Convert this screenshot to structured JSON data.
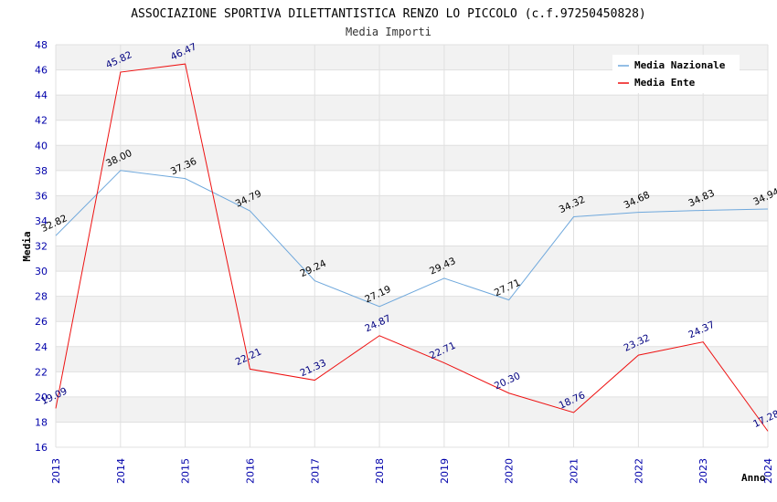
{
  "chart_data": {
    "type": "line",
    "title": "ASSOCIAZIONE SPORTIVA DILETTANTISTICA RENZO LO PICCOLO (c.f.97250450828)",
    "subtitle": "Media Importi",
    "xlabel": "Anno",
    "ylabel": "Media",
    "categories": [
      "2013",
      "2014",
      "2015",
      "2016",
      "2017",
      "2018",
      "2019",
      "2020",
      "2021",
      "2022",
      "2023",
      "2024"
    ],
    "ylim": [
      16,
      48
    ],
    "yticks": [
      "16",
      "18",
      "20",
      "22",
      "24",
      "26",
      "28",
      "30",
      "32",
      "34",
      "36",
      "38",
      "40",
      "42",
      "44",
      "46",
      "48"
    ],
    "legend_position": "top-right",
    "series": [
      {
        "name": "Media Nazionale",
        "color": "#6fa8dc",
        "label_color": "#000000",
        "values": [
          32.82,
          38.0,
          37.36,
          34.79,
          29.24,
          27.19,
          29.43,
          27.71,
          34.32,
          34.68,
          34.83,
          34.94
        ],
        "labels": [
          "32.82",
          "38.00",
          "37.36",
          "34.79",
          "29.24",
          "27.19",
          "29.43",
          "27.71",
          "34.32",
          "34.68",
          "34.83",
          "34.94"
        ]
      },
      {
        "name": "Media Ente",
        "color": "#ee1111",
        "label_color": "#000080",
        "values": [
          19.09,
          45.82,
          46.47,
          22.21,
          21.33,
          24.87,
          22.71,
          20.3,
          18.76,
          23.32,
          24.37,
          17.28
        ],
        "labels": [
          "19.09",
          "45.82",
          "46.47",
          "22.21",
          "21.33",
          "24.87",
          "22.71",
          "20.30",
          "18.76",
          "23.32",
          "24.37",
          "17.28"
        ]
      }
    ]
  }
}
